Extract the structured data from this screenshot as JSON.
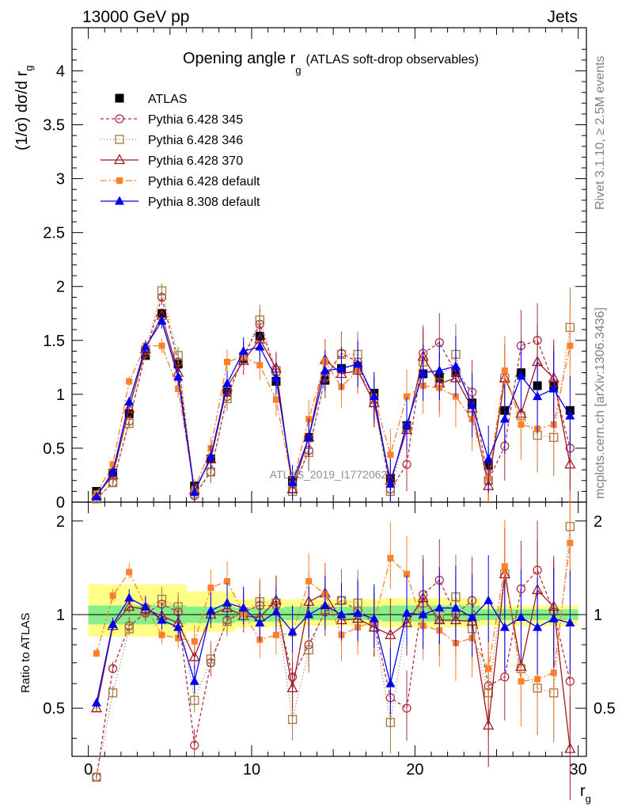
{
  "header": {
    "left": "13000 GeV pp",
    "right": "Jets"
  },
  "side": {
    "rivet": "Rivet 3.1.10, ≥ 2.5M events",
    "mcplots": "mcplots.cern.ch [arXiv:1306.3436]"
  },
  "watermark": "ATLAS_2019_I1772062",
  "chart_data": {
    "type": "line",
    "title": "Opening angle r",
    "title_sub": "g",
    "title_suffix": "(ATLAS soft-drop observables)",
    "xlabel": "r",
    "xlabel_sub": "g",
    "ylabel": "(1/σ) dσ/d r",
    "ylabel_sub": "g",
    "ratio_ylabel": "Ratio to ATLAS",
    "xlim": [
      -1,
      30.5
    ],
    "ylim": [
      0,
      4.4
    ],
    "ratio_ylim": [
      0.35,
      2.3
    ],
    "x_ticks": [
      0,
      10,
      20,
      30
    ],
    "y_ticks": [
      0,
      0.5,
      1,
      1.5,
      2,
      2.5,
      3,
      3.5,
      4
    ],
    "y_tick_labels": [
      "0",
      "0.5",
      "1",
      "1.5",
      "2",
      "2.5",
      "3",
      "3.5",
      "4"
    ],
    "ratio_ticks": [
      0.5,
      1,
      2
    ],
    "ratio_tick_labels": [
      "0.5",
      "1",
      "2"
    ],
    "legend_position": "top-left",
    "x": [
      0.5,
      1.5,
      2.5,
      3.5,
      4.5,
      5.5,
      6.5,
      7.5,
      8.5,
      9.5,
      10.5,
      11.5,
      12.5,
      13.5,
      14.5,
      15.5,
      16.5,
      17.5,
      18.5,
      19.5,
      20.5,
      21.5,
      22.5,
      23.5,
      24.5,
      25.5,
      26.5,
      27.5,
      28.5,
      29.5
    ],
    "bands": [
      {
        "x0": 0,
        "x1": 6,
        "lo": 0.85,
        "hi": 1.25,
        "inner_lo": 0.93,
        "inner_hi": 1.07
      },
      {
        "x0": 6,
        "x1": 9,
        "lo": 0.88,
        "hi": 1.19,
        "inner_lo": 0.94,
        "inner_hi": 1.06
      },
      {
        "x0": 9,
        "x1": 12,
        "lo": 0.91,
        "hi": 1.12,
        "inner_lo": 0.95,
        "inner_hi": 1.05
      },
      {
        "x0": 12,
        "x1": 18,
        "lo": 0.92,
        "hi": 1.12,
        "inner_lo": 0.96,
        "inner_hi": 1.06
      },
      {
        "x0": 18,
        "x1": 24,
        "lo": 0.91,
        "hi": 1.13,
        "inner_lo": 0.95,
        "inner_hi": 1.07
      },
      {
        "x0": 24,
        "x1": 30,
        "lo": 0.92,
        "hi": 1.07,
        "inner_lo": 0.96,
        "inner_hi": 1.04
      }
    ],
    "series": [
      {
        "name": "ATLAS",
        "color": "#000000",
        "marker": "square-filled",
        "dash": "none",
        "values": [
          0.1,
          0.27,
          0.82,
          1.36,
          1.75,
          1.28,
          0.15,
          0.4,
          1.02,
          1.33,
          1.54,
          1.12,
          0.2,
          0.6,
          1.13,
          1.24,
          1.26,
          1.01,
          0.22,
          0.71,
          1.19,
          1.15,
          1.2,
          0.92,
          0.34,
          0.85,
          1.2,
          1.08,
          1.08,
          0.85
        ]
      },
      {
        "name": "Pythia 6.428 345",
        "color": "#b03040",
        "marker": "circle-open",
        "dash": "4,3",
        "values": [
          0.03,
          0.18,
          0.75,
          1.38,
          1.9,
          1.3,
          0.06,
          0.28,
          0.98,
          1.35,
          1.65,
          1.2,
          0.12,
          0.48,
          1.15,
          1.38,
          1.3,
          0.95,
          0.12,
          0.35,
          1.38,
          1.48,
          1.2,
          1.02,
          0.2,
          0.52,
          1.45,
          1.5,
          1.1,
          0.5
        ],
        "ratio": [
          0.3,
          0.67,
          0.92,
          1.01,
          1.08,
          1.02,
          0.38,
          0.7,
          0.96,
          1.02,
          1.07,
          1.07,
          0.63,
          0.8,
          1.02,
          1.11,
          1.03,
          0.94,
          0.54,
          0.5,
          1.16,
          1.29,
          1.0,
          1.11,
          0.59,
          0.63,
          1.21,
          1.39,
          1.02,
          0.61
        ]
      },
      {
        "name": "Pythia 6.428 346",
        "color": "#a07840",
        "marker": "square-open",
        "dash": "1,3",
        "values": [
          0.03,
          0.18,
          0.73,
          1.41,
          1.96,
          1.36,
          0.08,
          0.28,
          0.96,
          1.35,
          1.69,
          1.22,
          0.1,
          0.46,
          1.17,
          1.37,
          1.37,
          0.92,
          0.1,
          0.69,
          1.3,
          1.11,
          1.37,
          0.83,
          0.2,
          1.15,
          0.8,
          0.62,
          0.6,
          1.62
        ],
        "ratio": [
          0.3,
          0.56,
          0.9,
          1.04,
          1.12,
          1.06,
          0.53,
          0.72,
          0.95,
          1.02,
          1.1,
          1.09,
          0.46,
          0.77,
          1.04,
          1.11,
          1.09,
          0.91,
          0.45,
          0.97,
          1.09,
          0.97,
          1.14,
          0.9,
          0.56,
          1.35,
          0.67,
          0.58,
          0.56,
          1.92
        ]
      },
      {
        "name": "Pythia 6.428 370",
        "color": "#a01820",
        "marker": "triangle-open",
        "dash": "none",
        "values": [
          0.06,
          0.25,
          0.87,
          1.42,
          1.73,
          1.2,
          0.11,
          0.4,
          1.07,
          1.31,
          1.51,
          1.24,
          0.12,
          0.6,
          1.32,
          1.19,
          1.22,
          0.92,
          0.2,
          0.67,
          1.35,
          1.1,
          1.15,
          0.87,
          0.15,
          1.15,
          0.82,
          1.3,
          1.15,
          0.35
        ],
        "ratio": [
          0.5,
          0.92,
          1.06,
          1.04,
          0.99,
          0.94,
          0.73,
          1.0,
          1.05,
          0.99,
          0.98,
          1.11,
          0.58,
          1.1,
          1.17,
          0.96,
          0.97,
          0.91,
          0.86,
          0.94,
          1.13,
          0.96,
          0.96,
          0.95,
          0.44,
          1.35,
          0.68,
          1.2,
          1.06,
          0.37
        ]
      },
      {
        "name": "Pythia 6.428 default",
        "color": "#ff7f2a",
        "marker": "square-filled-small",
        "dash": "8,3,2,3",
        "values": [
          0.08,
          0.35,
          1.12,
          1.45,
          1.45,
          1.05,
          0.12,
          0.5,
          1.3,
          1.35,
          1.27,
          0.95,
          0.17,
          0.77,
          1.3,
          1.07,
          1.22,
          0.98,
          0.44,
          0.98,
          1.08,
          1.06,
          0.98,
          0.77,
          0.22,
          1.22,
          0.72,
          0.68,
          0.72,
          1.45
        ],
        "ratio": [
          0.75,
          1.15,
          1.37,
          1.06,
          0.86,
          0.84,
          0.82,
          1.22,
          1.28,
          1.01,
          0.83,
          0.86,
          0.87,
          1.28,
          1.16,
          0.86,
          0.91,
          0.95,
          1.52,
          1.35,
          0.92,
          0.89,
          0.81,
          0.84,
          0.67,
          1.43,
          0.61,
          0.62,
          0.65,
          1.7
        ]
      },
      {
        "name": "Pythia 8.308 default",
        "color": "#0000ee",
        "marker": "triangle-filled",
        "dash": "none",
        "values": [
          0.05,
          0.28,
          0.93,
          1.44,
          1.68,
          1.16,
          0.09,
          0.42,
          1.1,
          1.4,
          1.44,
          1.15,
          0.18,
          0.6,
          1.22,
          1.24,
          1.28,
          0.98,
          0.17,
          0.72,
          1.2,
          1.22,
          1.26,
          0.9,
          0.4,
          0.77,
          1.17,
          0.98,
          1.05,
          0.8
        ],
        "ratio": [
          0.52,
          0.93,
          1.13,
          1.06,
          0.96,
          0.91,
          0.61,
          1.03,
          1.09,
          1.05,
          0.94,
          1.02,
          0.88,
          1.0,
          1.07,
          1.0,
          1.01,
          0.97,
          0.6,
          1.01,
          1.0,
          1.05,
          1.05,
          0.98,
          1.11,
          0.91,
          0.98,
          0.91,
          0.97,
          0.94
        ]
      }
    ]
  }
}
